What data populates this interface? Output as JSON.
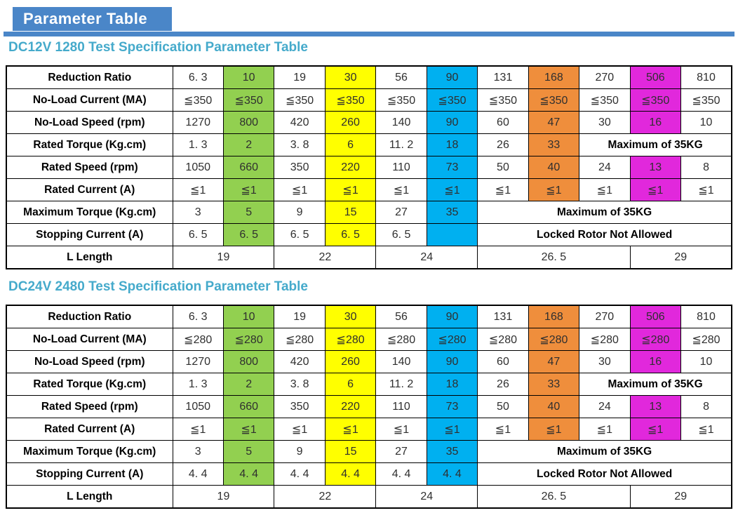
{
  "page": {
    "badge_label": "Parameter Table"
  },
  "colors": {
    "header_blue": "#4A86C8",
    "title_teal": "#45AACB",
    "green": "#92D050",
    "yellow": "#FFFF00",
    "cyan": "#00B0F0",
    "orange": "#EF8E3C",
    "magenta": "#E128DC"
  },
  "tables": [
    {
      "title": "DC12V 1280 Test Specification Parameter Table",
      "rows": [
        {
          "label": "Reduction Ratio",
          "cells": [
            {
              "t": "6. 3"
            },
            {
              "t": "10",
              "c": "green"
            },
            {
              "t": "19"
            },
            {
              "t": "30",
              "c": "yellow"
            },
            {
              "t": "56"
            },
            {
              "t": "90",
              "c": "cyan"
            },
            {
              "t": "131"
            },
            {
              "t": "168",
              "c": "orange"
            },
            {
              "t": "270"
            },
            {
              "t": "506",
              "c": "magenta"
            },
            {
              "t": "810"
            }
          ]
        },
        {
          "label": "No-Load Current (MA)",
          "cells": [
            {
              "t": "≦350"
            },
            {
              "t": "≦350",
              "c": "green"
            },
            {
              "t": "≦350"
            },
            {
              "t": "≦350",
              "c": "yellow"
            },
            {
              "t": "≦350"
            },
            {
              "t": "≦350",
              "c": "cyan"
            },
            {
              "t": "≦350"
            },
            {
              "t": "≦350",
              "c": "orange"
            },
            {
              "t": "≦350"
            },
            {
              "t": "≦350",
              "c": "magenta"
            },
            {
              "t": "≦350"
            }
          ]
        },
        {
          "label": "No-Load Speed (rpm)",
          "cells": [
            {
              "t": "1270"
            },
            {
              "t": "800",
              "c": "green"
            },
            {
              "t": "420"
            },
            {
              "t": "260",
              "c": "yellow"
            },
            {
              "t": "140"
            },
            {
              "t": "90",
              "c": "cyan"
            },
            {
              "t": "60"
            },
            {
              "t": "47",
              "c": "orange"
            },
            {
              "t": "30"
            },
            {
              "t": "16",
              "c": "magenta"
            },
            {
              "t": "10"
            }
          ]
        },
        {
          "label": "Rated Torque (Kg.cm)",
          "cells": [
            {
              "t": "1. 3"
            },
            {
              "t": "2",
              "c": "green"
            },
            {
              "t": "3. 8"
            },
            {
              "t": "6",
              "c": "yellow"
            },
            {
              "t": "11. 2"
            },
            {
              "t": "18",
              "c": "cyan"
            },
            {
              "t": "26"
            },
            {
              "t": "33",
              "c": "orange"
            },
            {
              "t": "Maximum of 35KG",
              "span": 3,
              "bold": true
            }
          ]
        },
        {
          "label": "Rated Speed (rpm)",
          "cells": [
            {
              "t": "1050"
            },
            {
              "t": "660",
              "c": "green"
            },
            {
              "t": "350"
            },
            {
              "t": "220",
              "c": "yellow"
            },
            {
              "t": "110"
            },
            {
              "t": "73",
              "c": "cyan"
            },
            {
              "t": "50"
            },
            {
              "t": "40",
              "c": "orange"
            },
            {
              "t": "24"
            },
            {
              "t": "13",
              "c": "magenta"
            },
            {
              "t": "8"
            }
          ]
        },
        {
          "label": "Rated Current (A)",
          "cells": [
            {
              "t": "≦1"
            },
            {
              "t": "≦1",
              "c": "green"
            },
            {
              "t": "≦1"
            },
            {
              "t": "≦1",
              "c": "yellow"
            },
            {
              "t": "≦1"
            },
            {
              "t": "≦1",
              "c": "cyan"
            },
            {
              "t": "≦1"
            },
            {
              "t": "≦1",
              "c": "orange"
            },
            {
              "t": "≦1"
            },
            {
              "t": "≦1",
              "c": "magenta"
            },
            {
              "t": "≦1"
            }
          ]
        },
        {
          "label": "Maximum Torque (Kg.cm)",
          "cells": [
            {
              "t": "3"
            },
            {
              "t": "5",
              "c": "green"
            },
            {
              "t": "9"
            },
            {
              "t": "15",
              "c": "yellow"
            },
            {
              "t": "27"
            },
            {
              "t": "35",
              "c": "cyan"
            },
            {
              "t": "Maximum of 35KG",
              "span": 5,
              "bold": true
            }
          ]
        },
        {
          "label": "Stopping Current (A)",
          "cells": [
            {
              "t": "6. 5"
            },
            {
              "t": "6. 5",
              "c": "green"
            },
            {
              "t": "6. 5"
            },
            {
              "t": "6. 5",
              "c": "yellow"
            },
            {
              "t": "6. 5"
            },
            {
              "t": "",
              "c": "cyan"
            },
            {
              "t": "Locked Rotor Not Allowed",
              "span": 5,
              "bold": true
            }
          ]
        },
        {
          "label": "L Length",
          "cells": [
            {
              "t": "19",
              "span": 2
            },
            {
              "t": "22",
              "span": 2
            },
            {
              "t": "24",
              "span": 2
            },
            {
              "t": "26. 5",
              "span": 3
            },
            {
              "t": "29",
              "span": 2
            }
          ]
        }
      ]
    },
    {
      "title": "DC24V 2480 Test Specification Parameter Table",
      "rows": [
        {
          "label": "Reduction Ratio",
          "cells": [
            {
              "t": "6. 3"
            },
            {
              "t": "10",
              "c": "green"
            },
            {
              "t": "19"
            },
            {
              "t": "30",
              "c": "yellow"
            },
            {
              "t": "56"
            },
            {
              "t": "90",
              "c": "cyan"
            },
            {
              "t": "131"
            },
            {
              "t": "168",
              "c": "orange"
            },
            {
              "t": "270"
            },
            {
              "t": "506",
              "c": "magenta"
            },
            {
              "t": "810"
            }
          ]
        },
        {
          "label": "No-Load Current (MA)",
          "cells": [
            {
              "t": "≦280"
            },
            {
              "t": "≦280",
              "c": "green"
            },
            {
              "t": "≦280"
            },
            {
              "t": "≦280",
              "c": "yellow"
            },
            {
              "t": "≦280"
            },
            {
              "t": "≦280",
              "c": "cyan"
            },
            {
              "t": "≦280"
            },
            {
              "t": "≦280",
              "c": "orange"
            },
            {
              "t": "≦280"
            },
            {
              "t": "≦280",
              "c": "magenta"
            },
            {
              "t": "≦280"
            }
          ]
        },
        {
          "label": "No-Load Speed (rpm)",
          "cells": [
            {
              "t": "1270"
            },
            {
              "t": "800",
              "c": "green"
            },
            {
              "t": "420"
            },
            {
              "t": "260",
              "c": "yellow"
            },
            {
              "t": "140"
            },
            {
              "t": "90",
              "c": "cyan"
            },
            {
              "t": "60"
            },
            {
              "t": "47",
              "c": "orange"
            },
            {
              "t": "30"
            },
            {
              "t": "16",
              "c": "magenta"
            },
            {
              "t": "10"
            }
          ]
        },
        {
          "label": "Rated Torque (Kg.cm)",
          "cells": [
            {
              "t": "1. 3"
            },
            {
              "t": "2",
              "c": "green"
            },
            {
              "t": "3. 8"
            },
            {
              "t": "6",
              "c": "yellow"
            },
            {
              "t": "11. 2"
            },
            {
              "t": "18",
              "c": "cyan"
            },
            {
              "t": "26"
            },
            {
              "t": "33",
              "c": "orange"
            },
            {
              "t": "Maximum of 35KG",
              "span": 3,
              "bold": true
            }
          ]
        },
        {
          "label": "Rated Speed (rpm)",
          "cells": [
            {
              "t": "1050"
            },
            {
              "t": "660",
              "c": "green"
            },
            {
              "t": "350"
            },
            {
              "t": "220",
              "c": "yellow"
            },
            {
              "t": "110"
            },
            {
              "t": "73",
              "c": "cyan"
            },
            {
              "t": "50"
            },
            {
              "t": "40",
              "c": "orange"
            },
            {
              "t": "24"
            },
            {
              "t": "13",
              "c": "magenta"
            },
            {
              "t": "8"
            }
          ]
        },
        {
          "label": "Rated Current (A)",
          "cells": [
            {
              "t": "≦1"
            },
            {
              "t": "≦1",
              "c": "green"
            },
            {
              "t": "≦1"
            },
            {
              "t": "≦1",
              "c": "yellow"
            },
            {
              "t": "≦1"
            },
            {
              "t": "≦1",
              "c": "cyan"
            },
            {
              "t": "≦1"
            },
            {
              "t": "≦1",
              "c": "orange"
            },
            {
              "t": "≦1"
            },
            {
              "t": "≦1",
              "c": "magenta"
            },
            {
              "t": "≦1"
            }
          ]
        },
        {
          "label": "Maximum Torque (Kg.cm)",
          "cells": [
            {
              "t": "3"
            },
            {
              "t": "5",
              "c": "green"
            },
            {
              "t": "9"
            },
            {
              "t": "15",
              "c": "yellow"
            },
            {
              "t": "27"
            },
            {
              "t": "35",
              "c": "cyan"
            },
            {
              "t": "Maximum of 35KG",
              "span": 5,
              "bold": true
            }
          ]
        },
        {
          "label": "Stopping Current (A)",
          "cells": [
            {
              "t": "4. 4"
            },
            {
              "t": "4. 4",
              "c": "green"
            },
            {
              "t": "4. 4"
            },
            {
              "t": "4. 4",
              "c": "yellow"
            },
            {
              "t": "4. 4"
            },
            {
              "t": "4. 4",
              "c": "cyan"
            },
            {
              "t": "Locked Rotor Not Allowed",
              "span": 5,
              "bold": true
            }
          ]
        },
        {
          "label": "L Length",
          "cells": [
            {
              "t": "19",
              "span": 2
            },
            {
              "t": "22",
              "span": 2
            },
            {
              "t": "24",
              "span": 2
            },
            {
              "t": "26. 5",
              "span": 3
            },
            {
              "t": "29",
              "span": 2
            }
          ]
        }
      ]
    }
  ]
}
